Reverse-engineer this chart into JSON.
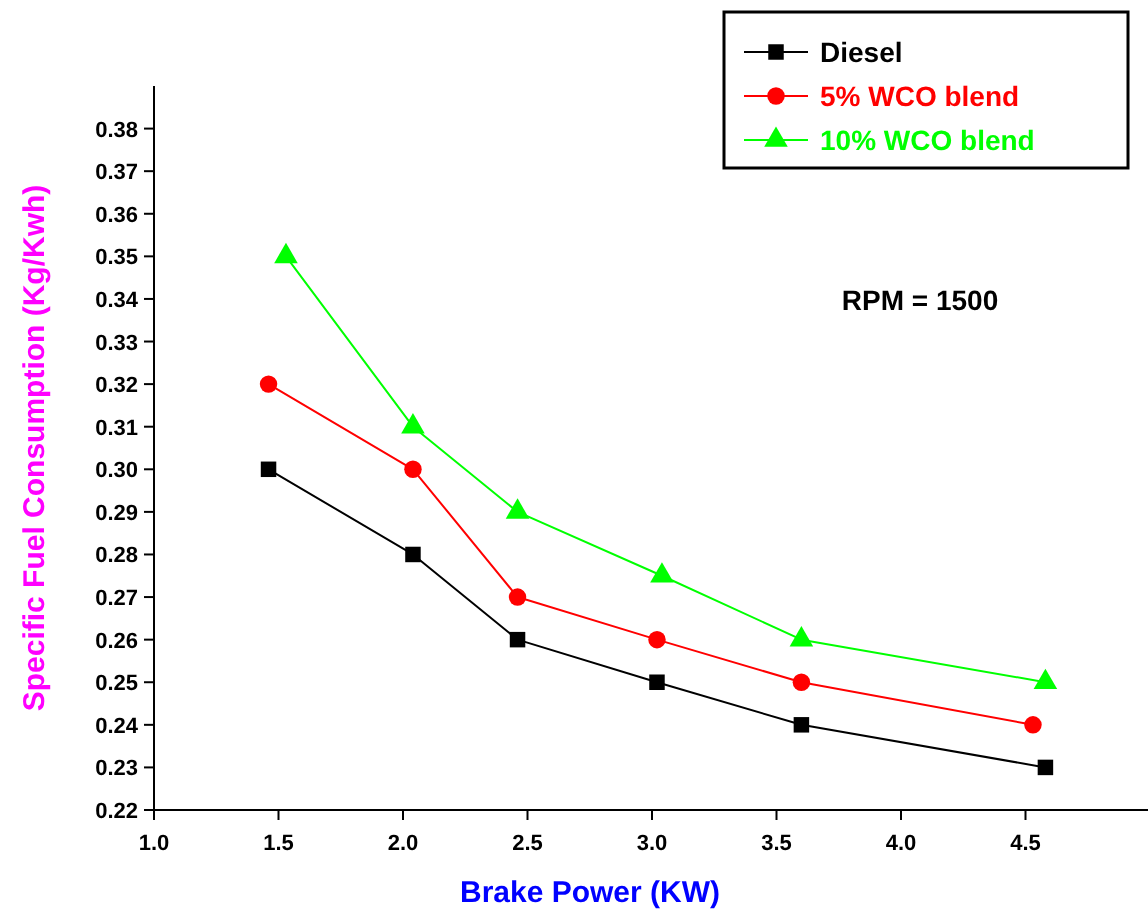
{
  "chart_data": {
    "type": "line",
    "xlabel": "Brake Power (KW)",
    "ylabel": "Specific Fuel Consumption (Kg/Kwh)",
    "xlim": [
      1.0,
      5.0
    ],
    "xticks": [
      {
        "value": 1.0,
        "label": "1.0"
      },
      {
        "value": 1.5,
        "label": "1.5"
      },
      {
        "value": 2.0,
        "label": "2.0"
      },
      {
        "value": 2.5,
        "label": "2.5"
      },
      {
        "value": 3.0,
        "label": "3.0"
      },
      {
        "value": 3.5,
        "label": "3.5"
      },
      {
        "value": 4.0,
        "label": "4.0"
      },
      {
        "value": 4.5,
        "label": "4.5"
      }
    ],
    "ylim": [
      0.22,
      0.39
    ],
    "yticks": [
      {
        "value": 0.22,
        "label": "0.22"
      },
      {
        "value": 0.23,
        "label": "0.23"
      },
      {
        "value": 0.24,
        "label": "0.24"
      },
      {
        "value": 0.25,
        "label": "0.25"
      },
      {
        "value": 0.26,
        "label": "0.26"
      },
      {
        "value": 0.27,
        "label": "0.27"
      },
      {
        "value": 0.28,
        "label": "0.28"
      },
      {
        "value": 0.29,
        "label": "0.29"
      },
      {
        "value": 0.3,
        "label": "0.30"
      },
      {
        "value": 0.31,
        "label": "0.31"
      },
      {
        "value": 0.32,
        "label": "0.32"
      },
      {
        "value": 0.33,
        "label": "0.33"
      },
      {
        "value": 0.34,
        "label": "0.34"
      },
      {
        "value": 0.35,
        "label": "0.35"
      },
      {
        "value": 0.36,
        "label": "0.36"
      },
      {
        "value": 0.37,
        "label": "0.37"
      },
      {
        "value": 0.38,
        "label": "0.38"
      }
    ],
    "grid": false,
    "legend": "top right",
    "annotations": [
      "RPM = 1500"
    ],
    "series": [
      {
        "name": "Diesel",
        "color": "#000000",
        "marker": "square",
        "x": [
          1.46,
          2.04,
          2.46,
          3.02,
          3.6,
          4.58
        ],
        "values": [
          0.3,
          0.28,
          0.26,
          0.25,
          0.24,
          0.23
        ]
      },
      {
        "name": "5% WCO blend",
        "color": "#ff0000",
        "marker": "circle",
        "x": [
          1.46,
          2.04,
          2.46,
          3.02,
          3.6,
          4.53
        ],
        "values": [
          0.32,
          0.3,
          0.27,
          0.26,
          0.25,
          0.24
        ]
      },
      {
        "name": "10% WCO blend",
        "color": "#00ff00",
        "marker": "triangle",
        "x": [
          1.53,
          2.04,
          2.46,
          3.04,
          3.6,
          4.58
        ],
        "values": [
          0.35,
          0.31,
          0.29,
          0.275,
          0.26,
          0.25
        ]
      }
    ]
  }
}
